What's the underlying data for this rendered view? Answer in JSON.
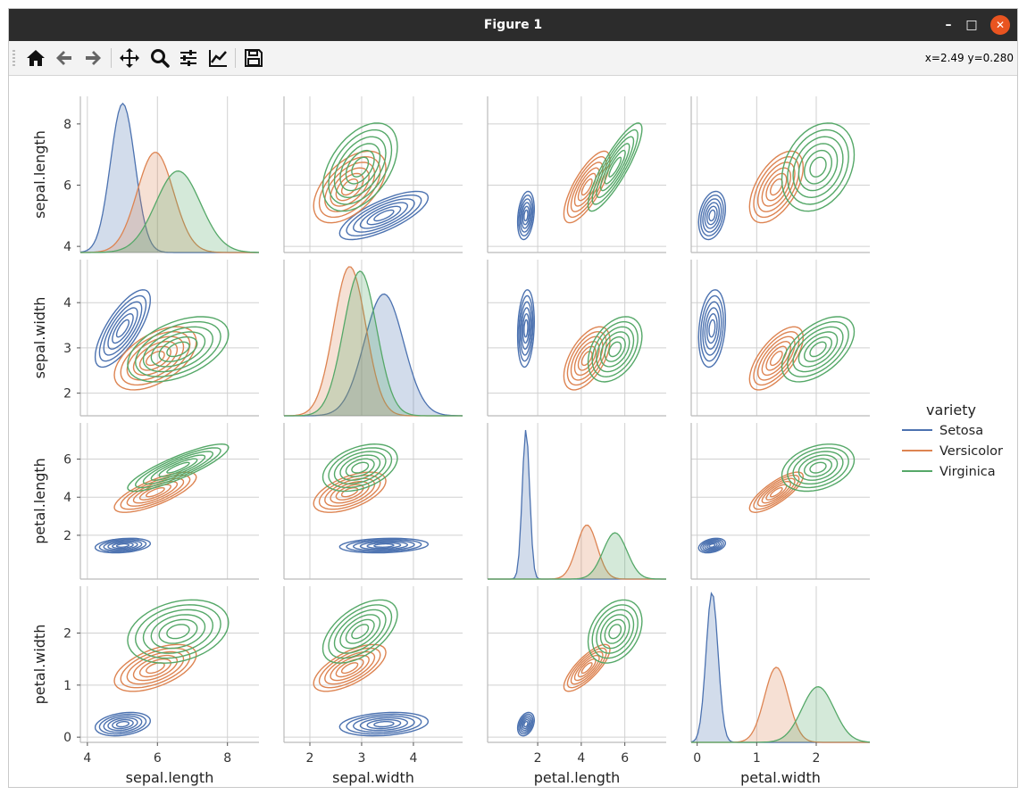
{
  "window": {
    "title": "Figure 1",
    "minimize_glyph": "–",
    "maximize_glyph": "□",
    "close_glyph": "✕"
  },
  "toolbar": {
    "buttons": [
      "home-icon",
      "back-arrow-icon",
      "forward-arrow-icon",
      "pan-icon",
      "zoom-icon",
      "configure-subplots-icon",
      "edit-axis-icon",
      "save-icon"
    ],
    "coords": "x=2.49 y=0.280"
  },
  "chart_data": {
    "type": "pairplot-kde",
    "variables": [
      "sepal.length",
      "sepal.width",
      "petal.length",
      "petal.width"
    ],
    "axis_ranges": {
      "sepal.length": [
        3.8,
        8.9
      ],
      "sepal.width": [
        1.5,
        4.95
      ],
      "petal.length": [
        -0.3,
        7.9
      ],
      "petal.width": [
        -0.1,
        2.9
      ]
    },
    "ticks": {
      "sepal.length": [
        4,
        6,
        8
      ],
      "sepal.width": [
        2,
        3,
        4
      ],
      "petal.length": [
        2,
        4,
        6
      ],
      "petal.width": [
        0,
        1,
        2
      ]
    },
    "grid": true,
    "legend": {
      "title": "variety",
      "placement": "right",
      "entries": [
        "Setosa",
        "Versicolor",
        "Virginica"
      ]
    },
    "series": [
      {
        "name": "Setosa",
        "color": "#4c72b0",
        "mean": {
          "sepal.length": 5.01,
          "sepal.width": 3.43,
          "petal.length": 1.46,
          "petal.width": 0.25
        },
        "sd": {
          "sepal.length": 0.35,
          "sepal.width": 0.38,
          "petal.length": 0.17,
          "petal.width": 0.1
        }
      },
      {
        "name": "Versicolor",
        "color": "#dd8452",
        "mean": {
          "sepal.length": 5.94,
          "sepal.width": 2.77,
          "petal.length": 4.26,
          "petal.width": 1.33
        },
        "sd": {
          "sepal.length": 0.52,
          "sepal.width": 0.31,
          "petal.length": 0.47,
          "petal.width": 0.2
        }
      },
      {
        "name": "Virginica",
        "color": "#55a868",
        "mean": {
          "sepal.length": 6.59,
          "sepal.width": 2.97,
          "petal.length": 5.55,
          "petal.width": 2.03
        },
        "sd": {
          "sepal.length": 0.64,
          "sepal.width": 0.32,
          "petal.length": 0.55,
          "petal.width": 0.27
        }
      }
    ],
    "correlations": {
      "Setosa": {
        "sepal.length|sepal.width": 0.74,
        "sepal.length|petal.length": 0.27,
        "sepal.length|petal.width": 0.28,
        "sepal.width|petal.length": 0.18,
        "sepal.width|petal.width": 0.23,
        "petal.length|petal.width": 0.33
      },
      "Versicolor": {
        "sepal.length|sepal.width": 0.53,
        "sepal.length|petal.length": 0.75,
        "sepal.length|petal.width": 0.55,
        "sepal.width|petal.length": 0.56,
        "sepal.width|petal.width": 0.66,
        "petal.length|petal.width": 0.79
      },
      "Virginica": {
        "sepal.length|sepal.width": 0.46,
        "sepal.length|petal.length": 0.86,
        "sepal.length|petal.width": 0.28,
        "sepal.width|petal.length": 0.4,
        "sepal.width|petal.width": 0.54,
        "petal.length|petal.width": 0.32
      }
    }
  }
}
